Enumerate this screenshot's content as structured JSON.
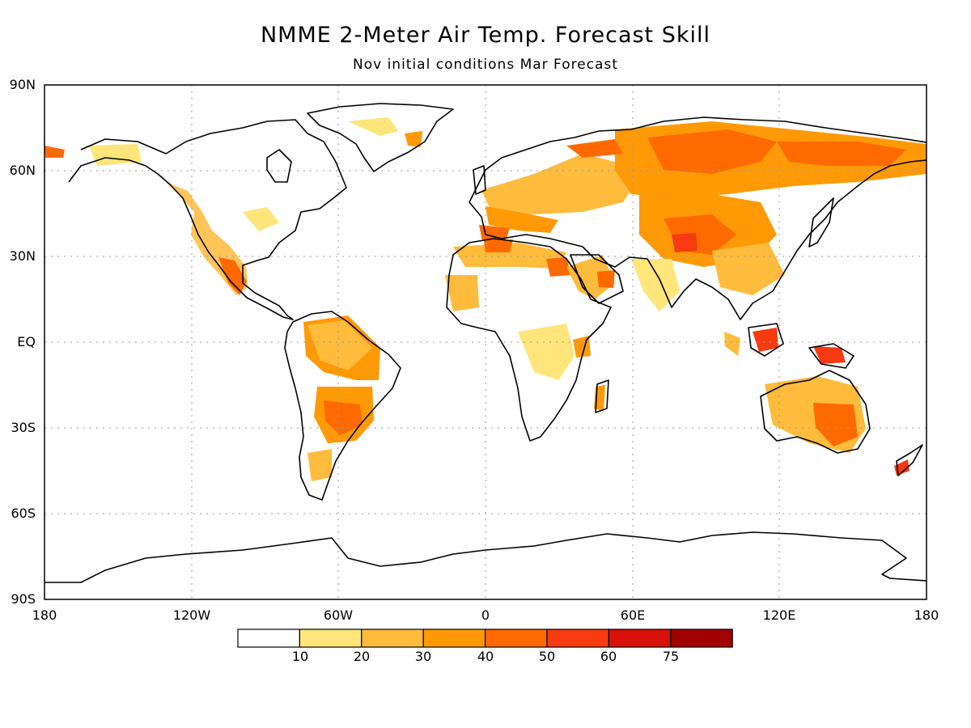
{
  "title": "NMME 2-Meter Air Temp. Forecast Skill",
  "subtitle": "Nov initial conditions  Mar Forecast",
  "lat_labels": [
    "90N",
    "60N",
    "30N",
    "EQ",
    "30S",
    "60S",
    "90S"
  ],
  "lon_labels": [
    "180",
    "120W",
    "60W",
    "0",
    "60E",
    "120E",
    "180"
  ],
  "colorbar": {
    "ticks": [
      "10",
      "20",
      "30",
      "40",
      "50",
      "60",
      "75"
    ],
    "colors": [
      "#ffffff",
      "#ffe57a",
      "#ffbb3b",
      "#ff9a06",
      "#ff6a00",
      "#f73a10",
      "#d91108",
      "#a30000"
    ]
  },
  "grid": "dotted",
  "map_colors": {
    "land_outline": "#000000",
    "light": "#ffe57a",
    "mid": "#ffbb3b",
    "orange": "#ff9a06",
    "dark": "#ff6a00",
    "red": "#f73a10"
  }
}
